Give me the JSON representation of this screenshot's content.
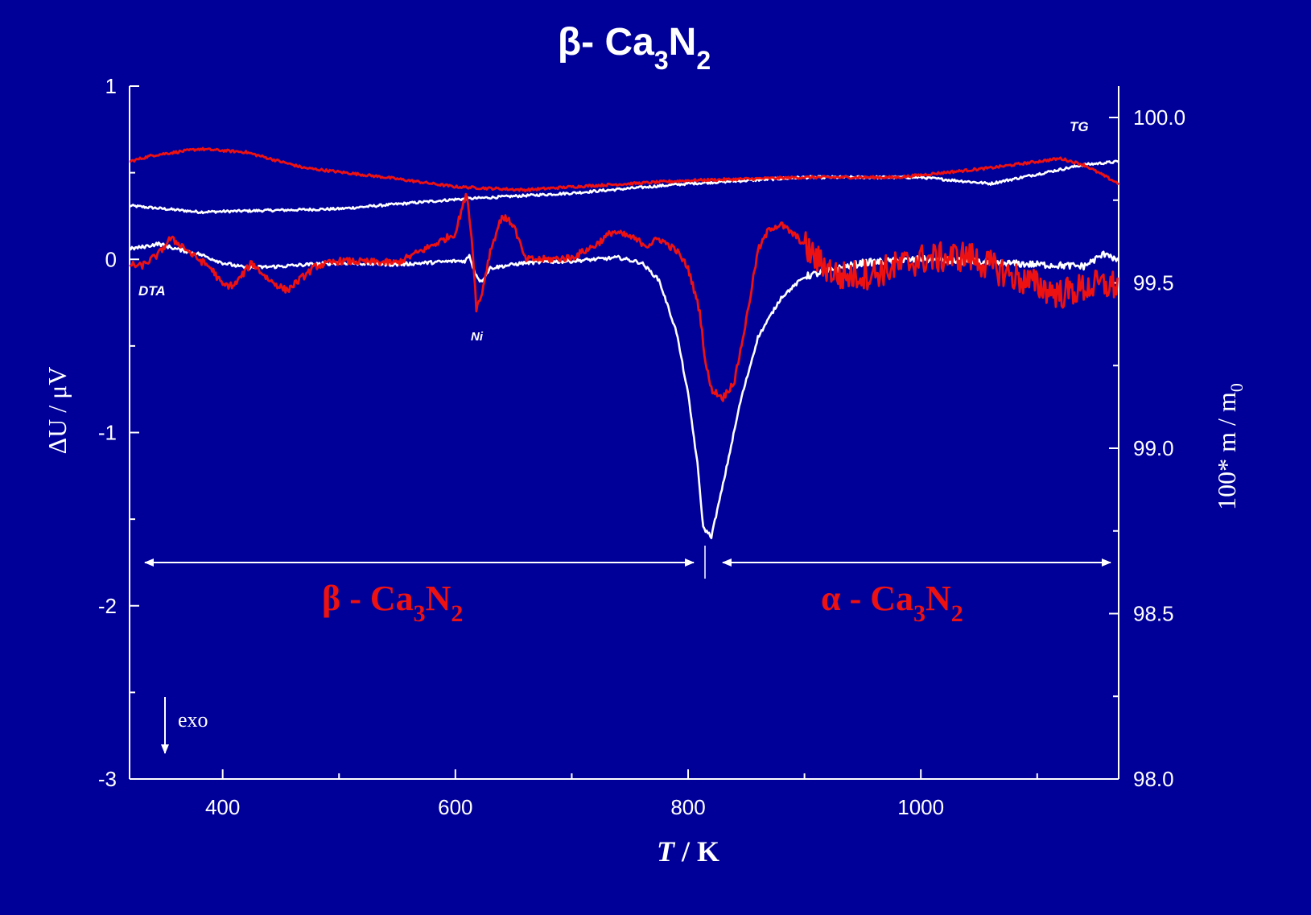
{
  "colors": {
    "background": "#000099",
    "foreground": "#ffffff",
    "accent": "#ee1111"
  },
  "title": {
    "main": "β- Ca",
    "sub1": "3",
    "mid": "N",
    "sub2": "2"
  },
  "chart_data": {
    "type": "line",
    "x_axis": {
      "label_italic": "T",
      "label_rest": " /  K",
      "range": [
        320,
        1170
      ],
      "ticks": [
        400,
        600,
        800,
        1000
      ],
      "tick_labels": [
        "400",
        "600",
        "800",
        "1000"
      ],
      "minor_ticks": [
        500,
        700,
        900,
        1100
      ]
    },
    "y_left": {
      "label": "ΔU / μV",
      "range": [
        -3,
        1
      ],
      "ticks": [
        -3,
        -2,
        -1,
        0,
        1
      ],
      "tick_labels": [
        "-3",
        "-2",
        "-1",
        "0",
        "1"
      ],
      "minor_ticks": [
        -2.5,
        -1.5,
        -0.5,
        0.5
      ]
    },
    "y_right": {
      "label_main": "100* m / m",
      "label_sub": "0",
      "range": [
        98.0,
        100.1
      ],
      "ticks": [
        98.0,
        98.5,
        99.0,
        99.5,
        100.0
      ],
      "tick_labels": [
        "98.0",
        "98.5",
        "99.0",
        "99.5",
        "100.0"
      ],
      "minor_ticks": [
        98.25,
        98.75,
        99.25,
        99.75
      ]
    },
    "annotations": {
      "tg": "TG",
      "dta": "DTA",
      "ni": "Ni",
      "exo": "exo"
    },
    "phase_labels": [
      {
        "greek": "β",
        "text": " - Ca",
        "sub1": "3",
        "mid": "N",
        "sub2": "2"
      },
      {
        "greek": "α",
        "text": " - Ca",
        "sub1": "3",
        "mid": "N",
        "sub2": "2"
      }
    ],
    "transition_T": 813,
    "series": [
      {
        "kind": "TG",
        "color": "#ffffff",
        "axis": "right",
        "noise": 0.004,
        "x": [
          320,
          380,
          500,
          600,
          700,
          800,
          900,
          1000,
          1060,
          1100,
          1140,
          1170
        ],
        "y": [
          99.82,
          99.8,
          99.81,
          99.84,
          99.86,
          99.89,
          99.91,
          99.91,
          99.89,
          99.92,
          99.95,
          99.96
        ]
      },
      {
        "kind": "TG",
        "color": "#ee1111",
        "axis": "right",
        "noise": 0.004,
        "x": [
          320,
          340,
          380,
          420,
          470,
          540,
          600,
          660,
          700,
          800,
          900,
          980,
          1060,
          1120,
          1140,
          1170
        ],
        "y": [
          99.96,
          99.98,
          100.0,
          99.99,
          99.94,
          99.91,
          99.88,
          99.87,
          99.88,
          99.9,
          99.91,
          99.91,
          99.94,
          99.97,
          99.95,
          99.89
        ]
      },
      {
        "kind": "DTA",
        "color": "#ffffff",
        "axis": "left",
        "noise": 0.01,
        "x": [
          320,
          330,
          345,
          360,
          380,
          400,
          420,
          450,
          500,
          550,
          600,
          608,
          612,
          617,
          622,
          630,
          660,
          700,
          720,
          740,
          760,
          775,
          790,
          800,
          808,
          813,
          820,
          830,
          845,
          860,
          880,
          900,
          950,
          1000,
          1060,
          1100,
          1140,
          1160,
          1170
        ],
        "y": [
          0.06,
          0.07,
          0.09,
          0.06,
          0.03,
          -0.02,
          -0.05,
          -0.04,
          -0.02,
          -0.03,
          -0.01,
          -0.01,
          0.02,
          -0.08,
          -0.13,
          -0.05,
          -0.02,
          -0.01,
          0.0,
          0.01,
          -0.02,
          -0.12,
          -0.42,
          -0.78,
          -1.18,
          -1.55,
          -1.6,
          -1.3,
          -0.82,
          -0.45,
          -0.22,
          -0.1,
          -0.02,
          0.0,
          -0.02,
          -0.03,
          -0.04,
          0.04,
          -0.02
        ]
      },
      {
        "kind": "DTA",
        "color": "#ee1111",
        "axis": "left",
        "noise": 0.02,
        "x": [
          320,
          330,
          345,
          355,
          365,
          375,
          390,
          400,
          410,
          425,
          440,
          455,
          480,
          500,
          550,
          580,
          600,
          605,
          610,
          615,
          618,
          622,
          630,
          640,
          650,
          660,
          680,
          700,
          720,
          735,
          750,
          765,
          775,
          790,
          800,
          810,
          815,
          820,
          830,
          840,
          850,
          860,
          870,
          880,
          895,
          910,
          930,
          960,
          1000,
          1040,
          1080,
          1120,
          1150,
          1170
        ],
        "y": [
          -0.03,
          -0.04,
          0.03,
          0.12,
          0.08,
          0.02,
          -0.05,
          -0.15,
          -0.15,
          -0.02,
          -0.12,
          -0.18,
          -0.04,
          -0.01,
          -0.02,
          0.08,
          0.15,
          0.28,
          0.38,
          0.05,
          -0.28,
          -0.22,
          0.05,
          0.25,
          0.2,
          0.0,
          0.0,
          0.01,
          0.08,
          0.16,
          0.13,
          0.08,
          0.12,
          0.05,
          -0.05,
          -0.3,
          -0.6,
          -0.75,
          -0.8,
          -0.7,
          -0.35,
          0.05,
          0.18,
          0.2,
          0.12,
          0.0,
          -0.1,
          -0.08,
          0.0,
          0.02,
          -0.1,
          -0.2,
          -0.15,
          -0.15
        ]
      }
    ]
  }
}
